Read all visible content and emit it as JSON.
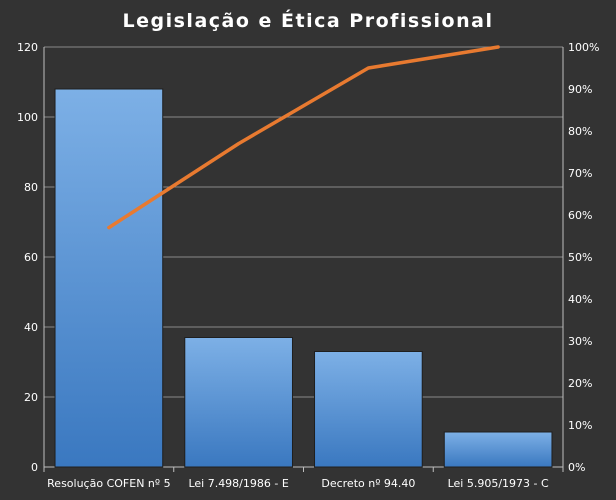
{
  "chart_data": {
    "type": "bar",
    "title": "Legislação  e Ética Profissional",
    "categories": [
      "Resolução COFEN nº 5",
      "Lei 7.498/1986 - E",
      "Decreto nº 94.40",
      "Lei 5.905/1973 - C"
    ],
    "series": [
      {
        "type": "bar",
        "axis": "left",
        "values": [
          108,
          37,
          33,
          10
        ]
      },
      {
        "type": "line",
        "axis": "right",
        "values": [
          57,
          77,
          95,
          100
        ]
      }
    ],
    "ylim": [
      0,
      120
    ],
    "yticks": [
      0,
      20,
      40,
      60,
      80,
      100,
      120
    ],
    "y2lim": [
      0,
      100
    ],
    "y2ticks": [
      "0%",
      "10%",
      "20%",
      "30%",
      "40%",
      "50%",
      "60%",
      "70%",
      "80%",
      "90%",
      "100%"
    ],
    "grid": true,
    "legend": "none",
    "colors": {
      "background": "#333333",
      "bar": "#4a8fd8",
      "bar_light": "#7db0e6",
      "bar_dark": "#3a78c0",
      "line": "#e87a30",
      "grid": "#8a8a8a",
      "axis": "#bfbfbf",
      "text": "#ffffff"
    }
  }
}
